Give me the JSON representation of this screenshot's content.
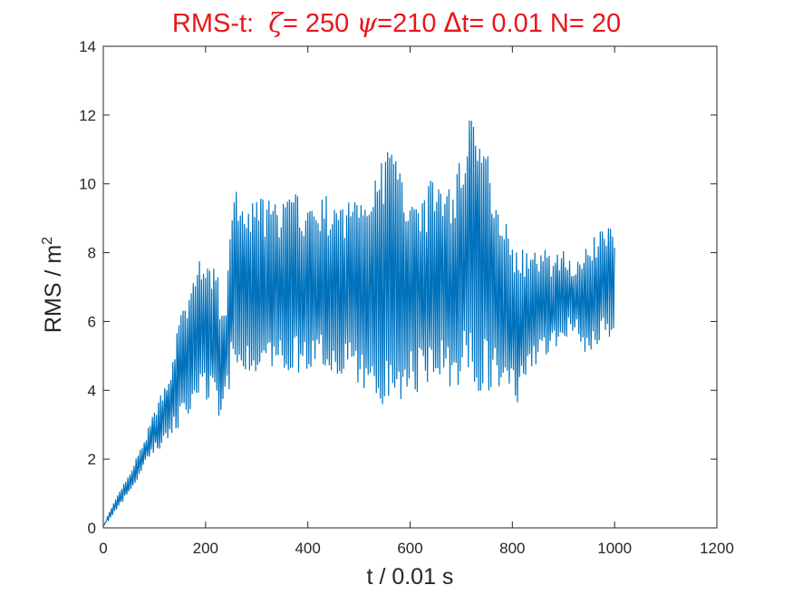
{
  "chart_data": {
    "type": "line",
    "title": {
      "prefix": "RMS-t:",
      "zeta_symbol": "ζ",
      "zeta_text": "= 250",
      "psi_symbol": "ψ",
      "psi_text": "=210",
      "delta_symbol": "Δ",
      "delta_text": "t= 0.01 N= 20"
    },
    "xlabel": "t / 0.01 s",
    "ylabel": {
      "text": "RMS / m",
      "sup": "2"
    },
    "xlim": [
      0,
      1200
    ],
    "ylim": [
      0,
      14
    ],
    "xticks": [
      0,
      200,
      400,
      600,
      800,
      1000,
      1200
    ],
    "yticks": [
      0,
      2,
      4,
      6,
      8,
      10,
      12,
      14
    ],
    "grid": false,
    "series": [
      {
        "color": "#0072bd",
        "x": [
          0,
          10,
          20,
          30,
          40,
          50,
          60,
          70,
          80,
          90,
          100,
          110,
          120,
          130,
          140,
          150,
          160,
          170,
          180,
          190,
          200,
          210,
          220,
          230,
          240,
          250,
          260,
          270,
          280,
          290,
          300,
          310,
          320,
          330,
          340,
          350,
          360,
          370,
          380,
          390,
          400,
          410,
          420,
          430,
          440,
          450,
          460,
          470,
          480,
          490,
          500,
          510,
          520,
          530,
          540,
          550,
          560,
          570,
          580,
          590,
          600,
          610,
          620,
          630,
          640,
          650,
          660,
          670,
          680,
          690,
          700,
          710,
          720,
          730,
          740,
          750,
          760,
          770,
          780,
          790,
          800,
          810,
          820,
          830,
          840,
          850,
          860,
          870,
          880,
          890,
          900,
          910,
          920,
          930,
          940,
          950,
          960,
          970,
          980,
          990,
          1000
        ],
        "min": [
          0,
          0.2,
          0.4,
          0.6,
          0.8,
          1.0,
          1.2,
          1.5,
          1.8,
          2.0,
          2.2,
          2.2,
          2.3,
          2.5,
          2.8,
          3.0,
          3.2,
          3.4,
          3.6,
          3.8,
          3.7,
          3.5,
          3.4,
          2.7,
          3.8,
          4.2,
          4.4,
          4.5,
          4.6,
          4.5,
          4.4,
          4.3,
          4.4,
          4.5,
          4.6,
          4.6,
          4.5,
          4.5,
          4.5,
          4.4,
          4.3,
          4.4,
          4.4,
          4.5,
          4.5,
          4.3,
          4.2,
          4.4,
          4.5,
          4.4,
          4.1,
          3.9,
          3.6,
          3.5,
          3.6,
          3.6,
          3.5,
          3.6,
          3.7,
          3.8,
          3.8,
          3.9,
          4.0,
          4.1,
          4.2,
          4.3,
          4.4,
          4.2,
          4.1,
          4.0,
          4.1,
          4.2,
          4.1,
          3.9,
          3.8,
          3.9,
          4.0,
          3.9,
          3.8,
          3.6,
          3.5,
          3.6,
          4.0,
          4.3,
          4.5,
          4.6,
          4.8,
          5.0,
          5.1,
          5.3,
          5.5,
          5.6,
          5.7,
          5.6,
          5.0,
          5.0,
          5.2,
          5.3,
          5.5,
          5.5,
          5.6
        ],
        "max": [
          0.1,
          0.4,
          0.7,
          1.0,
          1.3,
          1.5,
          1.9,
          2.2,
          2.5,
          3.0,
          3.4,
          3.8,
          4.2,
          4.6,
          5.4,
          6.2,
          6.5,
          7.0,
          7.5,
          8.1,
          7.4,
          7.8,
          8.0,
          6.2,
          6.7,
          9.6,
          9.8,
          9.5,
          9.4,
          9.5,
          9.6,
          9.7,
          9.6,
          9.5,
          9.4,
          9.6,
          9.7,
          9.8,
          9.7,
          9.6,
          9.5,
          9.4,
          9.6,
          9.7,
          9.6,
          9.4,
          9.3,
          9.5,
          9.6,
          9.8,
          9.9,
          10.0,
          10.5,
          10.8,
          10.4,
          11.0,
          11.5,
          11.0,
          10.5,
          10.3,
          10.2,
          10.0,
          9.9,
          9.8,
          10.1,
          10.5,
          10.2,
          10.1,
          10.0,
          10.4,
          11.0,
          12.0,
          12.7,
          12.2,
          11.5,
          11.0,
          10.5,
          10.0,
          9.6,
          8.8,
          8.5,
          8.3,
          8.1,
          8.0,
          7.9,
          8.2,
          8.4,
          8.0,
          7.8,
          8.0,
          8.2,
          8.0,
          7.6,
          7.8,
          8.1,
          8.3,
          8.5,
          8.6,
          8.8,
          9.0,
          8.4
        ]
      }
    ]
  }
}
